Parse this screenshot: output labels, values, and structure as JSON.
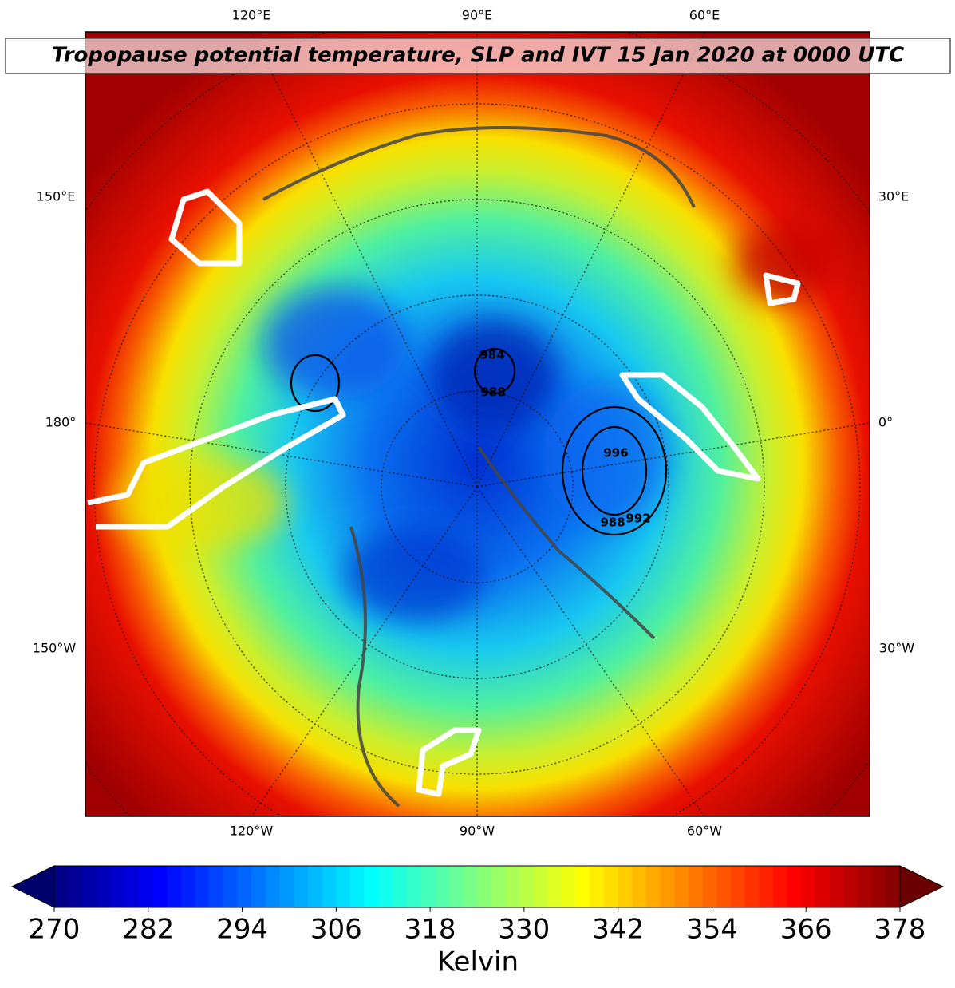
{
  "chart_data": {
    "type": "map",
    "title": "Tropopause potential temperature, SLP and IVT 15 Jan 2020 at 0000 UTC",
    "lon_labels": {
      "top": [
        "120°E",
        "90°E",
        "60°E"
      ],
      "left": [
        "150°E",
        "180°",
        "150°W"
      ],
      "right": [
        "30°E",
        "0°",
        "30°W"
      ],
      "bottom": [
        "120°W",
        "90°W",
        "60°W"
      ]
    },
    "contour_labels": [
      "984",
      "988",
      "996",
      "988",
      "992"
    ],
    "colorbar": {
      "label": "Kelvin",
      "colormap": "jet",
      "extend": "both",
      "lim": [
        270,
        378
      ],
      "ticks": [
        270,
        282,
        294,
        306,
        318,
        330,
        342,
        354,
        366,
        378
      ]
    }
  }
}
